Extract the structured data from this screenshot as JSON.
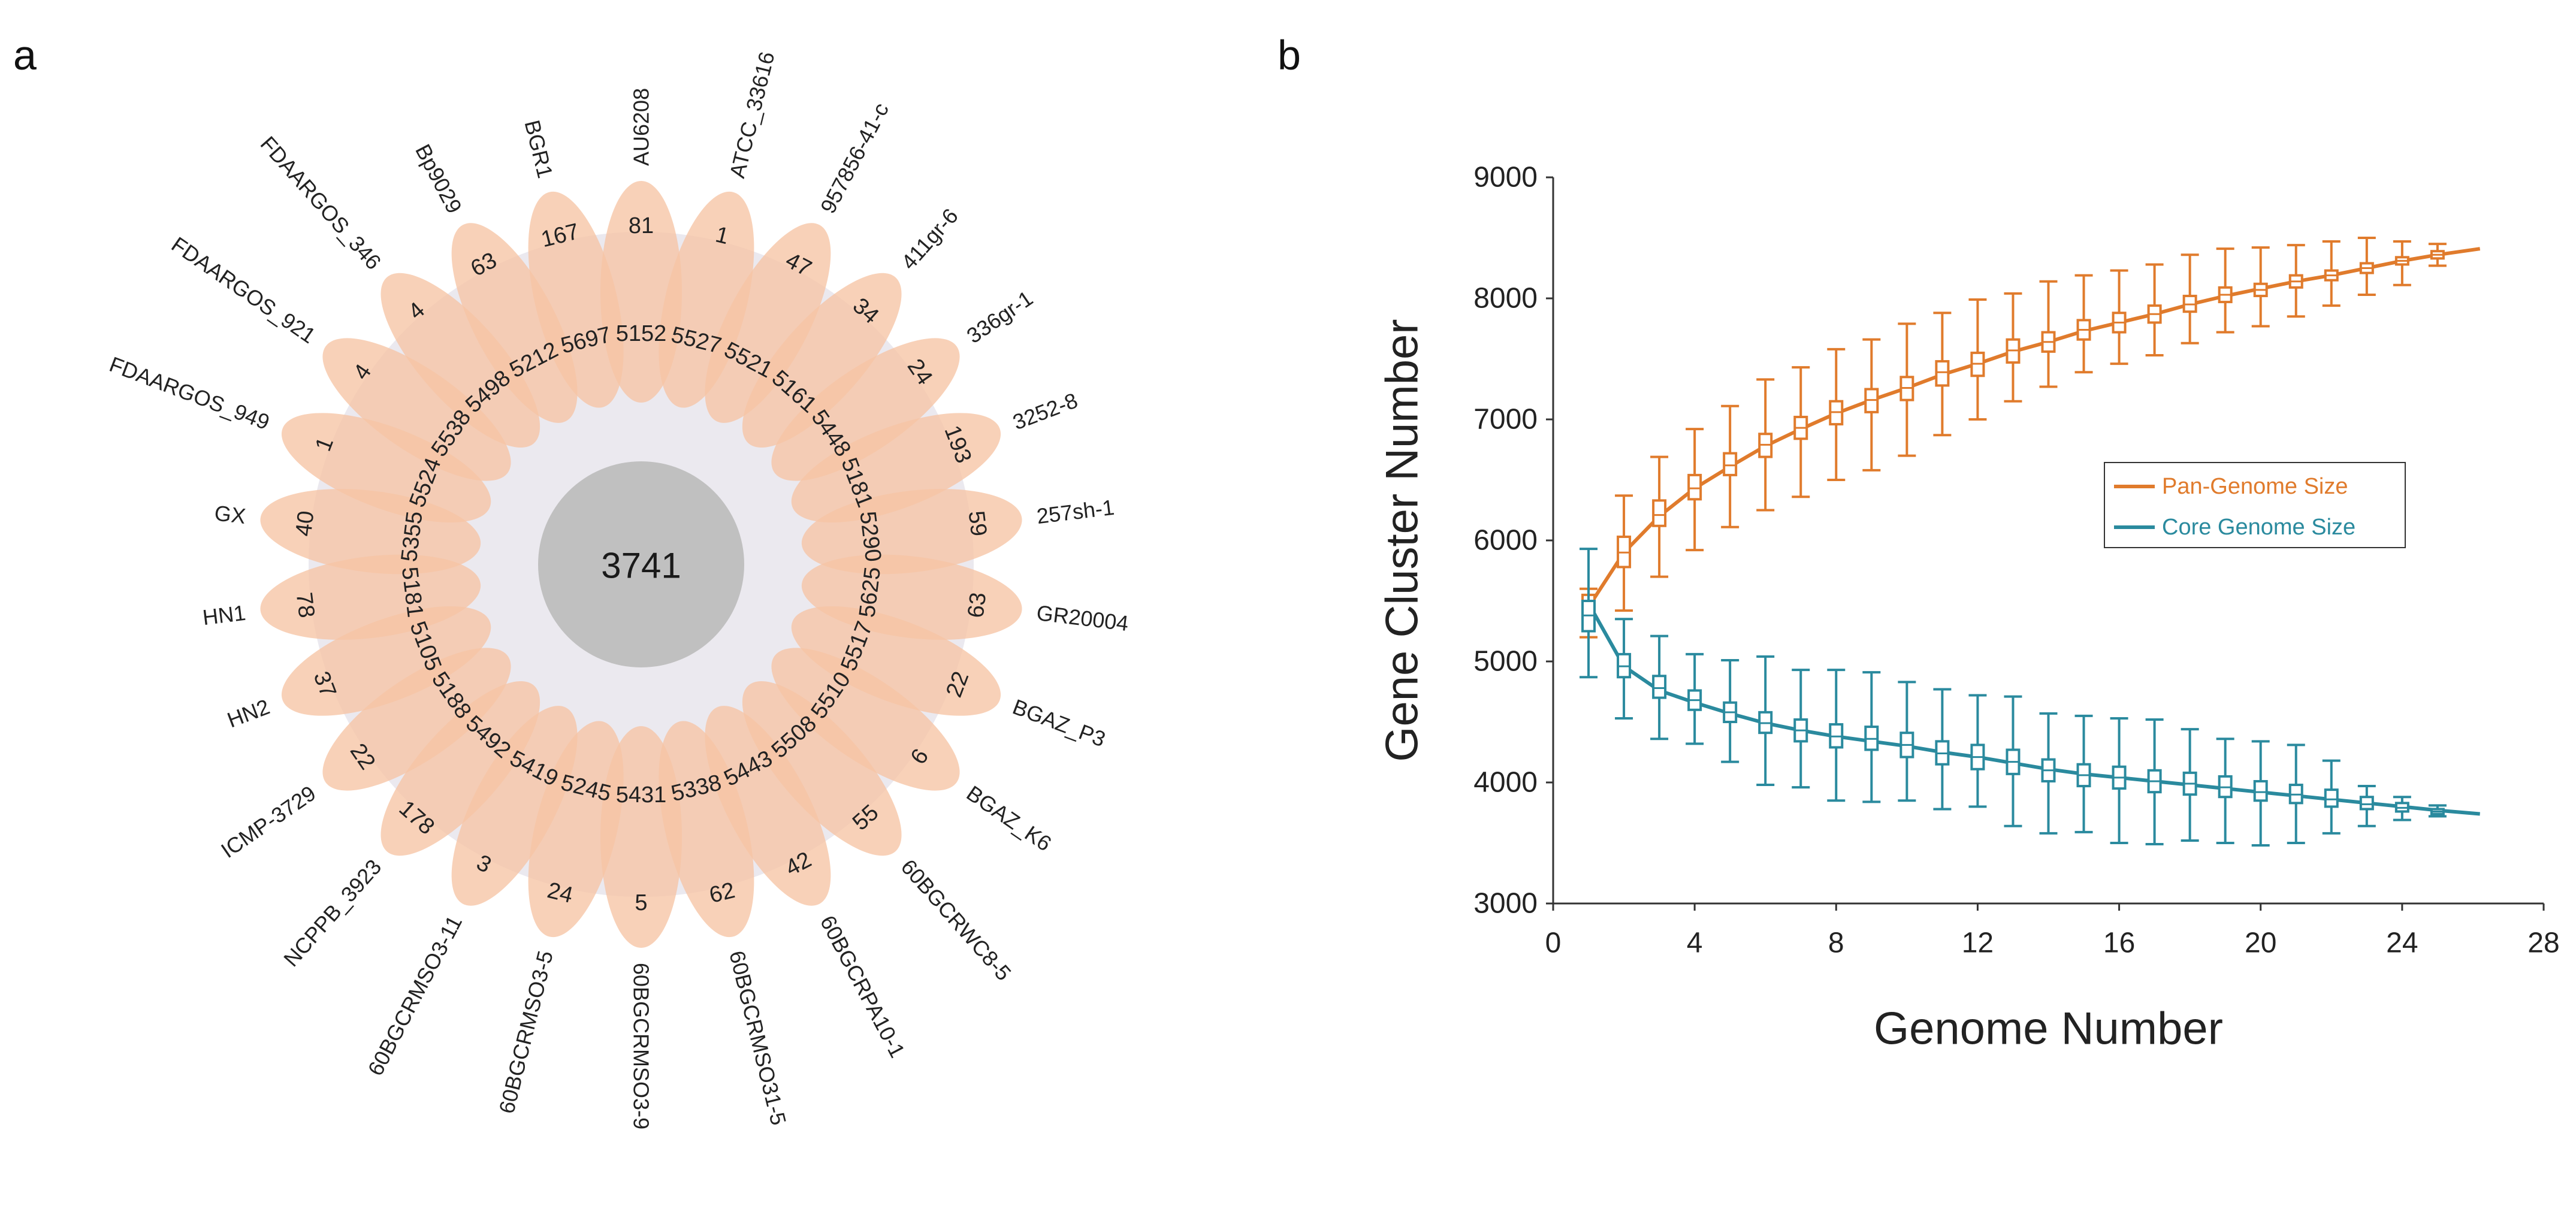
{
  "panel_a": {
    "letter": "a",
    "core": 3741,
    "petals": [
      {
        "label": "AU6208",
        "unique": 81,
        "shared": 5152
      },
      {
        "label": "ATCC_33616",
        "unique": 1,
        "shared": 5527
      },
      {
        "label": "957856-41-c",
        "unique": 47,
        "shared": 5521
      },
      {
        "label": "411gr-6",
        "unique": 34,
        "shared": 5161
      },
      {
        "label": "336gr-1",
        "unique": 24,
        "shared": 5448
      },
      {
        "label": "3252-8",
        "unique": 193,
        "shared": 5181
      },
      {
        "label": "257sh-1",
        "unique": 59,
        "shared": 5290
      },
      {
        "label": "GR20004",
        "unique": 63,
        "shared": 5625
      },
      {
        "label": "BGAZ_P3",
        "unique": 22,
        "shared": 5517
      },
      {
        "label": "BGAZ_K6",
        "unique": 6,
        "shared": 5510
      },
      {
        "label": "60BGCRWC8-5",
        "unique": 55,
        "shared": 5508
      },
      {
        "label": "60BGCRPA10-1",
        "unique": 42,
        "shared": 5443
      },
      {
        "label": "60BGCRMSO31-5",
        "unique": 62,
        "shared": 5338
      },
      {
        "label": "60BGCRMSO3-9",
        "unique": 5,
        "shared": 5431
      },
      {
        "label": "60BGCRMSO3-5",
        "unique": 24,
        "shared": 5245
      },
      {
        "label": "60BGCRMSO3-11",
        "unique": 3,
        "shared": 5419
      },
      {
        "label": "NCPPB_3923",
        "unique": 178,
        "shared": 5492
      },
      {
        "label": "ICMP-3729",
        "unique": 22,
        "shared": 5188
      },
      {
        "label": "HN2",
        "unique": 37,
        "shared": 5105
      },
      {
        "label": "HN1",
        "unique": 78,
        "shared": 5181
      },
      {
        "label": "GX",
        "unique": 40,
        "shared": 5355
      },
      {
        "label": "FDAARGOS_949",
        "unique": 1,
        "shared": 5524
      },
      {
        "label": "FDAARGOS_921",
        "unique": 4,
        "shared": 5538
      },
      {
        "label": "FDAARGOS_346",
        "unique": 4,
        "shared": 5498
      },
      {
        "label": "Bp9029",
        "unique": 63,
        "shared": 5212
      },
      {
        "label": "BGR1",
        "unique": 167,
        "shared": 5697
      }
    ]
  },
  "panel_b": {
    "letter": "b"
  },
  "colors": {
    "petal": "#f6c4a4",
    "petal_overlap": "#d9a88c",
    "ring": "#ebe9ef",
    "core": "#c0c0c0",
    "pan": "#e07b2c",
    "core_series": "#2a8a9e",
    "text": "#222222"
  },
  "chart_data": {
    "type": "line",
    "title": "",
    "xlabel": "Genome Number",
    "ylabel": "Gene Cluster Number",
    "xlim": [
      0,
      28
    ],
    "ylim": [
      3000,
      9000
    ],
    "xticks": [
      0,
      4,
      8,
      12,
      16,
      20,
      24,
      28
    ],
    "yticks": [
      3000,
      4000,
      5000,
      6000,
      7000,
      8000,
      9000
    ],
    "legend_position": "center-right",
    "series": [
      {
        "name": "Pan-Genome Size",
        "color": "#e07b2c",
        "x": [
          1,
          2,
          3,
          4,
          5,
          6,
          7,
          8,
          9,
          10,
          11,
          12,
          13,
          14,
          15,
          16,
          17,
          18,
          19,
          20,
          21,
          22,
          23,
          24,
          25
        ],
        "median": [
          5450,
          5900,
          6210,
          6430,
          6620,
          6790,
          6930,
          7060,
          7160,
          7260,
          7390,
          7460,
          7570,
          7640,
          7740,
          7800,
          7870,
          7950,
          8030,
          8070,
          8140,
          8190,
          8250,
          8310,
          8360
        ],
        "q1": [
          5350,
          5780,
          6120,
          6340,
          6540,
          6690,
          6840,
          6960,
          7060,
          7160,
          7280,
          7360,
          7470,
          7560,
          7660,
          7720,
          7800,
          7890,
          7970,
          8020,
          8090,
          8150,
          8210,
          8280,
          8330
        ],
        "q3": [
          5550,
          6030,
          6330,
          6540,
          6720,
          6880,
          7020,
          7150,
          7250,
          7350,
          7480,
          7550,
          7660,
          7720,
          7820,
          7880,
          7940,
          8020,
          8090,
          8120,
          8190,
          8230,
          8290,
          8340,
          8390
        ],
        "low": [
          5200,
          5420,
          5700,
          5920,
          6110,
          6250,
          6360,
          6500,
          6580,
          6700,
          6870,
          7000,
          7150,
          7270,
          7390,
          7460,
          7530,
          7630,
          7720,
          7770,
          7850,
          7940,
          8030,
          8110,
          8270
        ],
        "high": [
          5600,
          6370,
          6690,
          6920,
          7110,
          7330,
          7430,
          7580,
          7660,
          7790,
          7880,
          7990,
          8040,
          8140,
          8190,
          8230,
          8280,
          8360,
          8410,
          8420,
          8440,
          8470,
          8500,
          8470,
          8450
        ],
        "fit_x": [
          1,
          2,
          3,
          4,
          5,
          6,
          7,
          8,
          9,
          10,
          11,
          12,
          13,
          14,
          15,
          16,
          17,
          18,
          19,
          20,
          21,
          22,
          23,
          24,
          25,
          26.2
        ],
        "fit_y": [
          5450,
          5900,
          6200,
          6430,
          6610,
          6780,
          6920,
          7050,
          7160,
          7260,
          7370,
          7460,
          7560,
          7640,
          7730,
          7800,
          7870,
          7950,
          8020,
          8080,
          8140,
          8190,
          8250,
          8310,
          8360,
          8410
        ]
      },
      {
        "name": "Core Genome Size",
        "color": "#2a8a9e",
        "x": [
          1,
          2,
          3,
          4,
          5,
          6,
          7,
          8,
          9,
          10,
          11,
          12,
          13,
          14,
          15,
          16,
          17,
          18,
          19,
          20,
          21,
          22,
          23,
          24,
          25
        ],
        "median": [
          5380,
          4960,
          4780,
          4680,
          4580,
          4490,
          4430,
          4380,
          4360,
          4310,
          4240,
          4210,
          4170,
          4100,
          4060,
          4040,
          4010,
          3990,
          3960,
          3920,
          3900,
          3860,
          3820,
          3790,
          3760
        ],
        "q1": [
          5250,
          4870,
          4700,
          4600,
          4500,
          4410,
          4340,
          4290,
          4270,
          4210,
          4150,
          4110,
          4070,
          4010,
          3970,
          3950,
          3920,
          3900,
          3880,
          3850,
          3830,
          3800,
          3780,
          3760,
          3740
        ],
        "q3": [
          5500,
          5060,
          4880,
          4760,
          4660,
          4580,
          4520,
          4480,
          4460,
          4410,
          4340,
          4310,
          4270,
          4190,
          4150,
          4130,
          4100,
          4080,
          4050,
          4010,
          3980,
          3940,
          3880,
          3830,
          3780
        ],
        "low": [
          4870,
          4530,
          4360,
          4320,
          4170,
          3980,
          3960,
          3850,
          3840,
          3850,
          3780,
          3800,
          3640,
          3580,
          3590,
          3500,
          3490,
          3520,
          3500,
          3480,
          3500,
          3580,
          3640,
          3690,
          3720
        ],
        "high": [
          5930,
          5350,
          5210,
          5060,
          5010,
          5040,
          4930,
          4930,
          4910,
          4830,
          4770,
          4720,
          4710,
          4570,
          4550,
          4530,
          4520,
          4440,
          4360,
          4340,
          4310,
          4180,
          3970,
          3880,
          3810
        ],
        "fit_x": [
          1,
          2,
          3,
          4,
          5,
          6,
          7,
          8,
          9,
          10,
          11,
          12,
          13,
          14,
          15,
          16,
          17,
          18,
          19,
          20,
          21,
          22,
          23,
          24,
          25,
          26.2
        ],
        "fit_y": [
          5480,
          4960,
          4760,
          4660,
          4570,
          4490,
          4430,
          4380,
          4340,
          4300,
          4250,
          4210,
          4160,
          4110,
          4070,
          4040,
          4010,
          3980,
          3950,
          3920,
          3890,
          3860,
          3830,
          3800,
          3770,
          3740
        ]
      }
    ]
  }
}
